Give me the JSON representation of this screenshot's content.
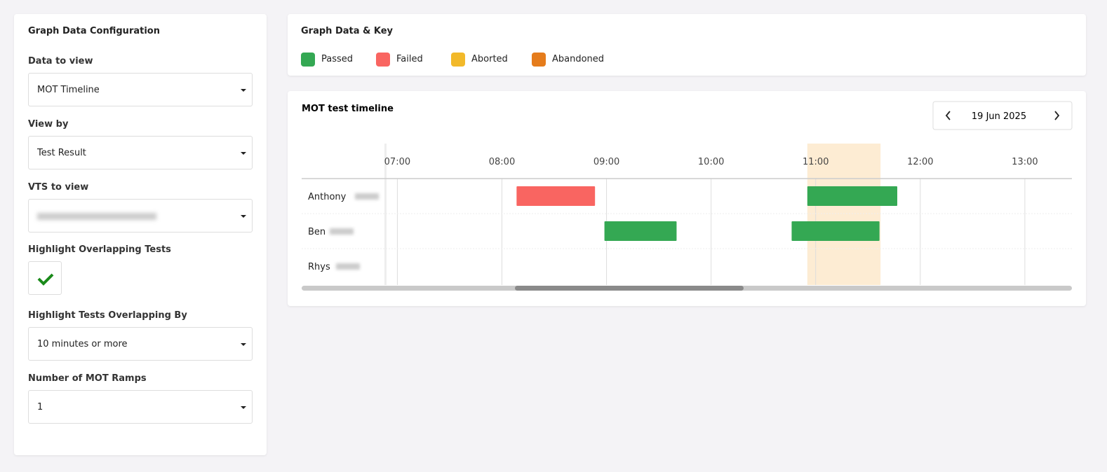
{
  "config": {
    "title": "Graph Data Configuration",
    "fields": [
      {
        "label": "Data to view",
        "value": "MOT Timeline"
      },
      {
        "label": "View by",
        "value": "Test Result"
      },
      {
        "label": "VTS to view",
        "value": null
      },
      {
        "label": "Highlight Overlapping Tests",
        "checked": true
      },
      {
        "label": "Highlight Tests Overlapping By",
        "value": "10 minutes or more"
      },
      {
        "label": "Number of MOT Ramps",
        "value": "1"
      }
    ]
  },
  "key": {
    "title": "Graph Data & Key",
    "items": [
      {
        "label": "Passed",
        "color": "#34a853"
      },
      {
        "label": "Failed",
        "color": "#f96561"
      },
      {
        "label": "Aborted",
        "color": "#f2b92a"
      },
      {
        "label": "Abandoned",
        "color": "#e57c1c"
      }
    ]
  },
  "timeline": {
    "title": "MOT test timeline",
    "date": "19 Jun 2025",
    "xlim": [
      6.89,
      13.45
    ],
    "xticks": [
      {
        "value": 7,
        "label": "07:00"
      },
      {
        "value": 8,
        "label": "08:00"
      },
      {
        "value": 9,
        "label": "09:00"
      },
      {
        "value": 10,
        "label": "10:00"
      },
      {
        "value": 11,
        "label": "11:00"
      },
      {
        "value": 12,
        "label": "12:00"
      },
      {
        "value": 13,
        "label": "13:00"
      }
    ],
    "highlight": {
      "start": 10.92,
      "end": 11.62
    },
    "rows": [
      {
        "name": "Anthony",
        "tests": [
          {
            "start": 8.14,
            "end": 8.89,
            "result": 1
          },
          {
            "start": 10.92,
            "end": 11.78,
            "result": 0
          }
        ]
      },
      {
        "name": "Ben",
        "tests": [
          {
            "start": 8.98,
            "end": 9.67,
            "result": 0
          },
          {
            "start": 10.77,
            "end": 11.61,
            "result": 0
          }
        ]
      },
      {
        "name": "Rhys",
        "tests": []
      }
    ]
  }
}
